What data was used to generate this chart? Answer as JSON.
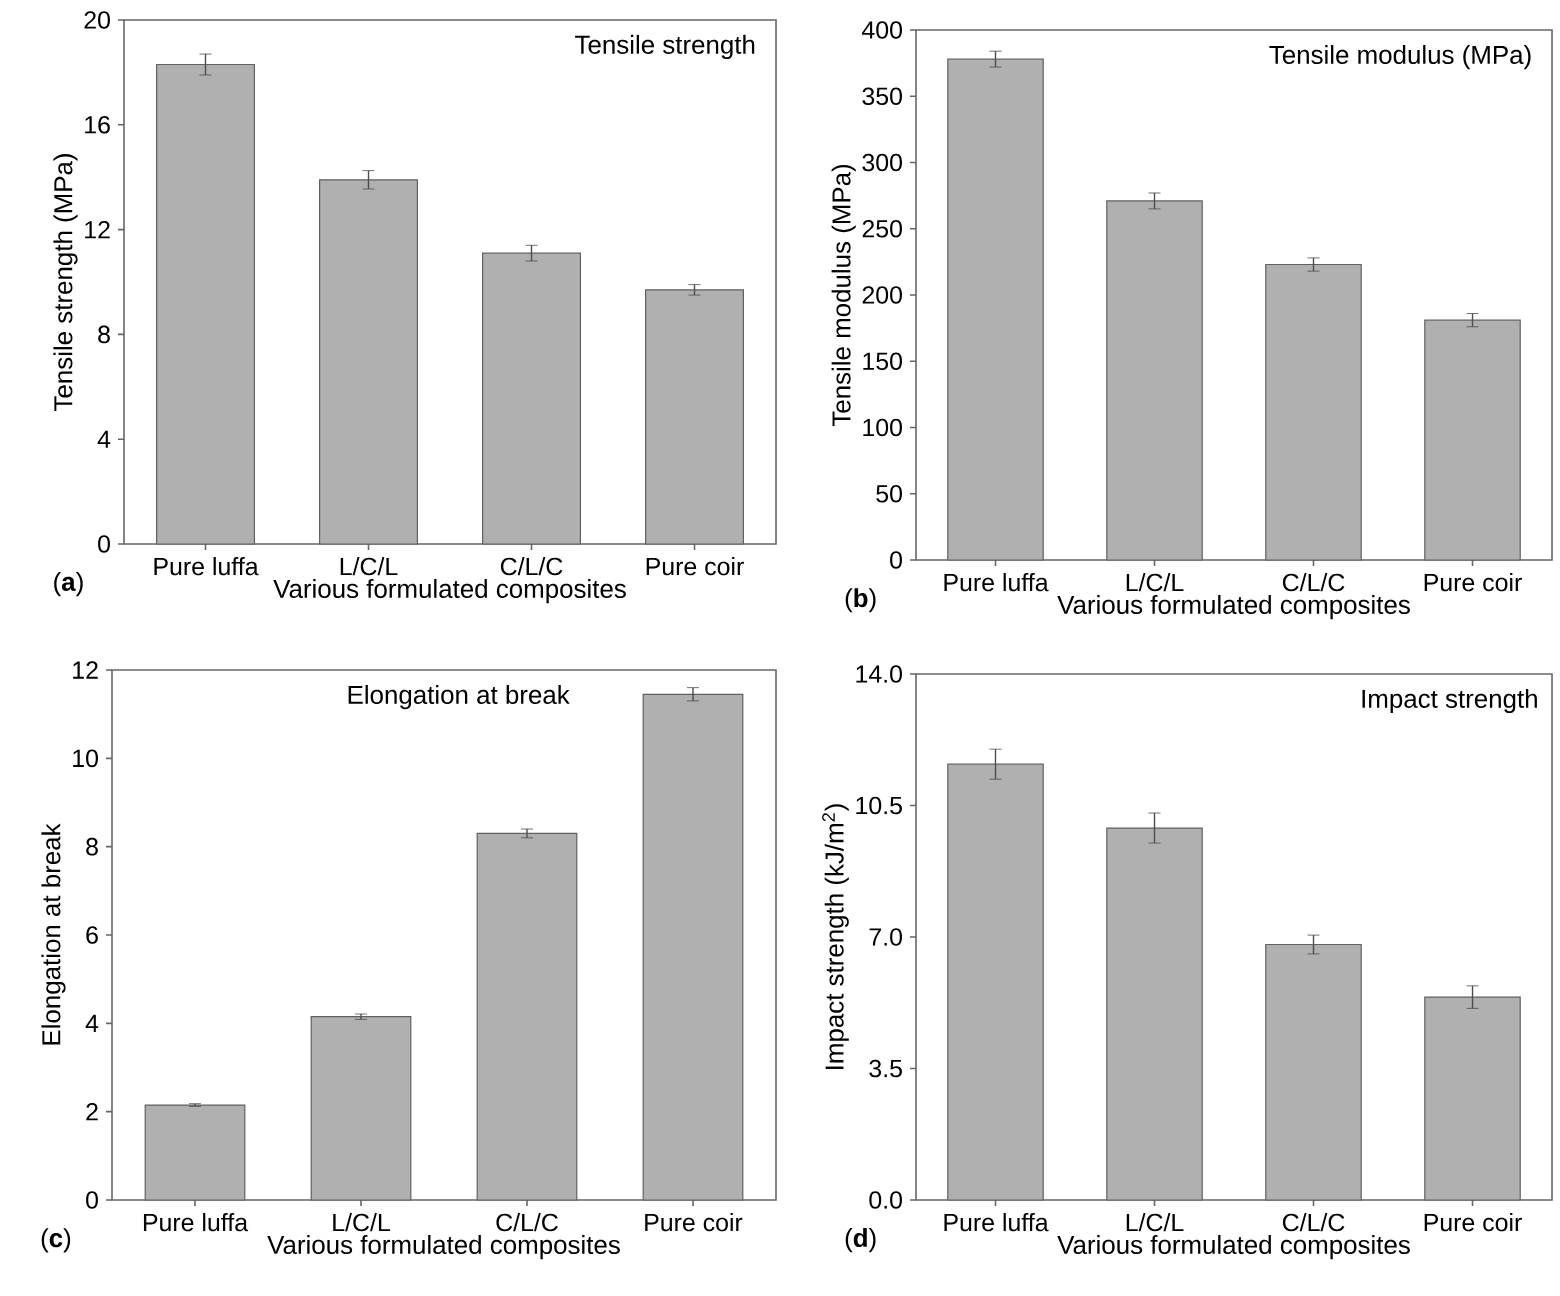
{
  "chart_data": [
    {
      "type": "bar",
      "title": "Tensile strength",
      "xlabel": "Various formulated composites",
      "ylabel": "Tensile strength (MPa)",
      "categories": [
        "Pure luffa",
        "L/C/L",
        "C/L/C",
        "Pure coir"
      ],
      "values": [
        18.3,
        13.9,
        11.1,
        9.7
      ],
      "errors": [
        0.4,
        0.35,
        0.3,
        0.2
      ],
      "color": "#b0b0b0",
      "ylim": [
        0,
        20
      ],
      "yticks": [
        0,
        4,
        8,
        12,
        16,
        20
      ],
      "annotations": [
        "(**a**)"
      ]
    },
    {
      "type": "bar",
      "title": "Tensile modulus (MPa)",
      "xlabel": "Various formulated composites",
      "ylabel": "Tensile modulus (MPa)",
      "categories": [
        "Pure luffa",
        "L/C/L",
        "C/L/C",
        "Pure coir"
      ],
      "values": [
        378,
        271,
        223,
        181
      ],
      "errors": [
        6,
        6,
        5,
        5
      ],
      "color": "#b0b0b0",
      "ylim": [
        0,
        400
      ],
      "yticks": [
        0,
        50,
        100,
        150,
        200,
        250,
        300,
        350,
        400
      ],
      "annotations": [
        "(**b**)"
      ]
    },
    {
      "type": "bar",
      "title": "Elongation at break",
      "xlabel": "Various formulated composites",
      "ylabel": "Elongation at break",
      "categories": [
        "Pure luffa",
        "L/C/L",
        "C/L/C",
        "Pure coir"
      ],
      "values": [
        2.15,
        4.15,
        8.3,
        11.45
      ],
      "errors": [
        0.03,
        0.06,
        0.1,
        0.15
      ],
      "color": "#b0b0b0",
      "ylim": [
        0,
        12
      ],
      "yticks": [
        0,
        2,
        4,
        6,
        8,
        10,
        12
      ],
      "annotations": [
        "(**c**)"
      ]
    },
    {
      "type": "bar",
      "title": "Impact strength",
      "xlabel": "Various formulated composites",
      "ylabel": "Impact strength (kJ/m$^{2}$)",
      "categories": [
        "Pure luffa",
        "L/C/L",
        "C/L/C",
        "Pure coir"
      ],
      "values": [
        11.6,
        9.9,
        6.8,
        5.4
      ],
      "errors": [
        0.4,
        0.4,
        0.25,
        0.3
      ],
      "color": "#b0b0b0",
      "ylim": [
        0,
        14
      ],
      "yticks": [
        {
          "value": 0,
          "label": "0.0"
        },
        {
          "value": 3.5,
          "label": "3.5"
        },
        {
          "value": 7,
          "label": "7.0"
        },
        {
          "value": 10.5,
          "label": "10.5"
        },
        {
          "value": 14,
          "label": "14.0"
        }
      ],
      "annotations": [
        "(**d**)"
      ]
    }
  ]
}
